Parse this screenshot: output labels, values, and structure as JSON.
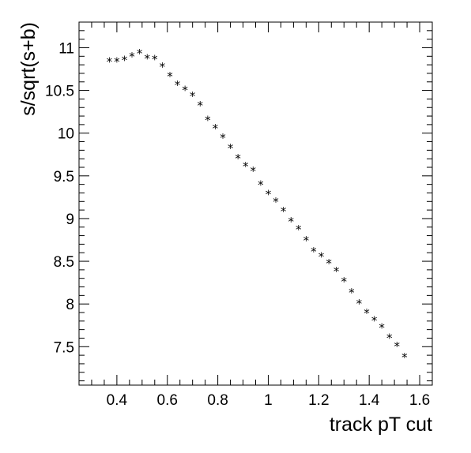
{
  "chart_data": {
    "type": "scatter",
    "xlabel": "track pT cut",
    "ylabel": "s/sqrt(s+b)",
    "xlim": [
      0.25,
      1.65
    ],
    "ylim": [
      7.05,
      11.3
    ],
    "x_ticks": [
      0.4,
      0.6,
      0.8,
      1.0,
      1.2,
      1.4,
      1.6
    ],
    "x_tick_labels": [
      "0.4",
      "0.6",
      "0.8",
      "1",
      "1.2",
      "1.4",
      "1.6"
    ],
    "y_ticks": [
      7.5,
      8,
      8.5,
      9,
      9.5,
      10,
      10.5,
      11
    ],
    "y_tick_labels": [
      "7.5",
      "8",
      "8.5",
      "9",
      "9.5",
      "10",
      "10.5",
      "11"
    ],
    "marker": "*",
    "grid": false,
    "series": [
      {
        "points": [
          [
            0.37,
            10.85
          ],
          [
            0.4,
            10.85
          ],
          [
            0.43,
            10.87
          ],
          [
            0.46,
            10.91
          ],
          [
            0.49,
            10.95
          ],
          [
            0.52,
            10.89
          ],
          [
            0.55,
            10.88
          ],
          [
            0.58,
            10.79
          ],
          [
            0.61,
            10.68
          ],
          [
            0.64,
            10.58
          ],
          [
            0.67,
            10.52
          ],
          [
            0.7,
            10.45
          ],
          [
            0.73,
            10.34
          ],
          [
            0.76,
            10.17
          ],
          [
            0.79,
            10.07
          ],
          [
            0.82,
            9.96
          ],
          [
            0.85,
            9.84
          ],
          [
            0.88,
            9.72
          ],
          [
            0.91,
            9.63
          ],
          [
            0.94,
            9.57
          ],
          [
            0.97,
            9.41
          ],
          [
            1.0,
            9.3
          ],
          [
            1.03,
            9.21
          ],
          [
            1.06,
            9.1
          ],
          [
            1.09,
            8.98
          ],
          [
            1.12,
            8.89
          ],
          [
            1.15,
            8.76
          ],
          [
            1.18,
            8.63
          ],
          [
            1.21,
            8.57
          ],
          [
            1.24,
            8.49
          ],
          [
            1.27,
            8.4
          ],
          [
            1.3,
            8.28
          ],
          [
            1.33,
            8.15
          ],
          [
            1.36,
            8.02
          ],
          [
            1.39,
            7.91
          ],
          [
            1.42,
            7.82
          ],
          [
            1.45,
            7.74
          ],
          [
            1.48,
            7.62
          ],
          [
            1.51,
            7.52
          ],
          [
            1.54,
            7.39
          ]
        ]
      }
    ]
  }
}
